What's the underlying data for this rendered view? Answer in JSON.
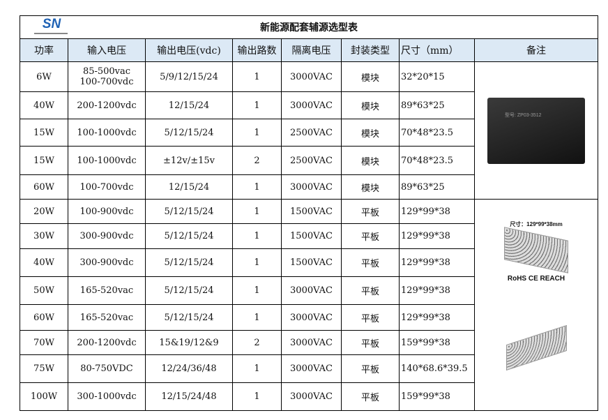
{
  "logo": {
    "text": "SN"
  },
  "title": "新能源配套辅源选型表",
  "headers": [
    "功率",
    "输入电压",
    "输出电压(vdc)",
    "输出路数",
    "隔离电压",
    "封装类型",
    "尺寸（mm）",
    "备注"
  ],
  "rows": [
    [
      "6W",
      "85-500vac\n100-700vdc",
      "5/9/12/15/24",
      "1",
      "3000VAC",
      "模块",
      "32*20*15"
    ],
    [
      "40W",
      "200-1200vdc",
      "12/15/24",
      "1",
      "3000VAC",
      "模块",
      "89*63*25"
    ],
    [
      "15W",
      "100-1000vdc",
      "5/12/15/24",
      "1",
      "2500VAC",
      "模块",
      "70*48*23.5"
    ],
    [
      "15W",
      "100-1000vdc",
      "±12v/±15v",
      "2",
      "2500VAC",
      "模块",
      "70*48*23.5"
    ],
    [
      "60W",
      "100-700vdc",
      "12/15/24",
      "1",
      "3000VAC",
      "模块",
      "89*63*25"
    ],
    [
      "20W",
      "100-900vdc",
      "5/12/15/24",
      "1",
      "1500VAC",
      "平板",
      "129*99*38"
    ],
    [
      "30W",
      "300-900vdc",
      "5/12/15/24",
      "1",
      "1500VAC",
      "平板",
      "129*99*38"
    ],
    [
      "40W",
      "300-900vdc",
      "5/12/15/24",
      "1",
      "1500VAC",
      "平板",
      "129*99*38"
    ],
    [
      "50W",
      "165-520vac",
      "5/12/15/24",
      "1",
      "3000VAC",
      "平板",
      "129*99*38"
    ],
    [
      "60W",
      "165-520vac",
      "5/12/15/24",
      "1",
      "3000VAC",
      "平板",
      "129*99*38"
    ],
    [
      "70W",
      "200-1200vdc",
      "15&19/12&9",
      "2",
      "3000VAC",
      "平板",
      "159*99*38"
    ],
    [
      "75W",
      "80-750VDC",
      "12/24/36/48",
      "1",
      "3000VAC",
      "平板",
      "140*68.6*39.5"
    ],
    [
      "100W",
      "300-1000vdc",
      "12/15/24/48",
      "1",
      "3000VAC",
      "平板",
      "159*99*38"
    ]
  ],
  "remarks": {
    "module_label": "型号: ZP03-3512",
    "flat_caption": "尺寸：129*99*38mm",
    "flat_cert": "RoHS  CE  REACH"
  }
}
